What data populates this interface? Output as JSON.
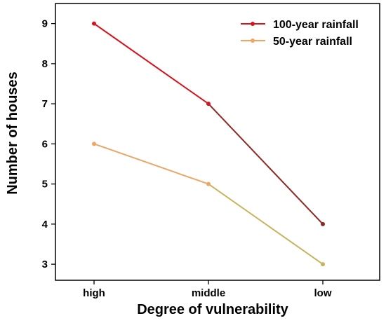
{
  "chart_data": {
    "type": "line",
    "title": "",
    "xlabel": "Degree of vulnerability",
    "ylabel": "Number of houses",
    "categories": [
      "high",
      "middle",
      "low"
    ],
    "ylim": [
      2.6,
      9.5
    ],
    "yticks": [
      3,
      4,
      5,
      6,
      7,
      8,
      9
    ],
    "grid": false,
    "legend_position": "top-right",
    "series": [
      {
        "name": "100-year rainfall",
        "values": [
          9,
          7,
          4
        ],
        "color": "#d7141e",
        "segment_colors": [
          "#d7141e",
          "#8c2a22"
        ]
      },
      {
        "name": "50-year rainfall",
        "values": [
          6,
          5,
          3
        ],
        "color": "#f0a460",
        "segment_colors": [
          "#e8a866",
          "#c8b45c"
        ]
      }
    ]
  }
}
